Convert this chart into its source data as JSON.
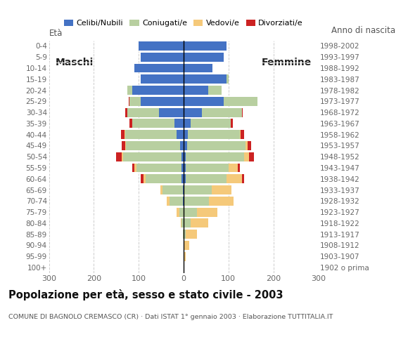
{
  "age_groups": [
    "100+",
    "95-99",
    "90-94",
    "85-89",
    "80-84",
    "75-79",
    "70-74",
    "65-69",
    "60-64",
    "55-59",
    "50-54",
    "45-49",
    "40-44",
    "35-39",
    "30-34",
    "25-29",
    "20-24",
    "15-19",
    "10-14",
    "5-9",
    "0-4"
  ],
  "birth_years": [
    "1902 o prima",
    "1903-1907",
    "1908-1912",
    "1913-1917",
    "1918-1922",
    "1923-1927",
    "1928-1932",
    "1933-1937",
    "1938-1942",
    "1943-1947",
    "1948-1952",
    "1953-1957",
    "1958-1962",
    "1963-1967",
    "1968-1972",
    "1973-1977",
    "1978-1982",
    "1983-1987",
    "1988-1992",
    "1993-1997",
    "1998-2002"
  ],
  "male": {
    "celibe": [
      0,
      0,
      0,
      0,
      0,
      0,
      2,
      2,
      5,
      5,
      5,
      8,
      15,
      20,
      55,
      95,
      115,
      95,
      110,
      95,
      100
    ],
    "coniugato": [
      0,
      0,
      0,
      2,
      5,
      10,
      30,
      45,
      80,
      100,
      130,
      120,
      115,
      95,
      70,
      25,
      10,
      0,
      0,
      0,
      0
    ],
    "vedovo": [
      0,
      0,
      0,
      0,
      2,
      5,
      5,
      5,
      5,
      5,
      3,
      2,
      2,
      0,
      0,
      0,
      0,
      0,
      0,
      0,
      0
    ],
    "divorziato": [
      0,
      0,
      0,
      0,
      0,
      0,
      0,
      0,
      5,
      5,
      12,
      8,
      7,
      5,
      5,
      2,
      0,
      0,
      0,
      0,
      0
    ]
  },
  "female": {
    "nubile": [
      0,
      0,
      0,
      0,
      0,
      0,
      2,
      2,
      5,
      5,
      5,
      8,
      10,
      15,
      40,
      90,
      55,
      95,
      65,
      90,
      95
    ],
    "coniugata": [
      0,
      0,
      2,
      5,
      15,
      30,
      55,
      60,
      90,
      95,
      130,
      130,
      115,
      90,
      90,
      75,
      30,
      5,
      0,
      0,
      0
    ],
    "vedova": [
      0,
      5,
      10,
      25,
      40,
      45,
      55,
      45,
      35,
      20,
      10,
      5,
      2,
      0,
      0,
      0,
      0,
      0,
      0,
      0,
      0
    ],
    "divorziata": [
      0,
      0,
      0,
      0,
      0,
      0,
      0,
      0,
      5,
      5,
      12,
      8,
      8,
      5,
      2,
      0,
      0,
      0,
      0,
      0,
      0
    ]
  },
  "colors": {
    "celibe": "#4472c4",
    "coniugato": "#b8cfa0",
    "vedovo": "#f5c97a",
    "divorziato": "#cc2222"
  },
  "title": "Popolazione per età, sesso e stato civile - 2003",
  "subtitle": "COMUNE DI BAGNOLO CREMASCO (CR) · Dati ISTAT 1° gennaio 2003 · Elaborazione TUTTITALIA.IT",
  "label_left": "Maschi",
  "label_right": "Femmine",
  "ylabel": "Età",
  "ylabel_right": "Anno di nascita",
  "xlim": 300,
  "legend_labels": [
    "Celibi/Nubili",
    "Coniugati/e",
    "Vedovi/e",
    "Divorziati/e"
  ],
  "xtick_vals": [
    -300,
    -200,
    -100,
    0,
    100,
    200,
    300
  ]
}
